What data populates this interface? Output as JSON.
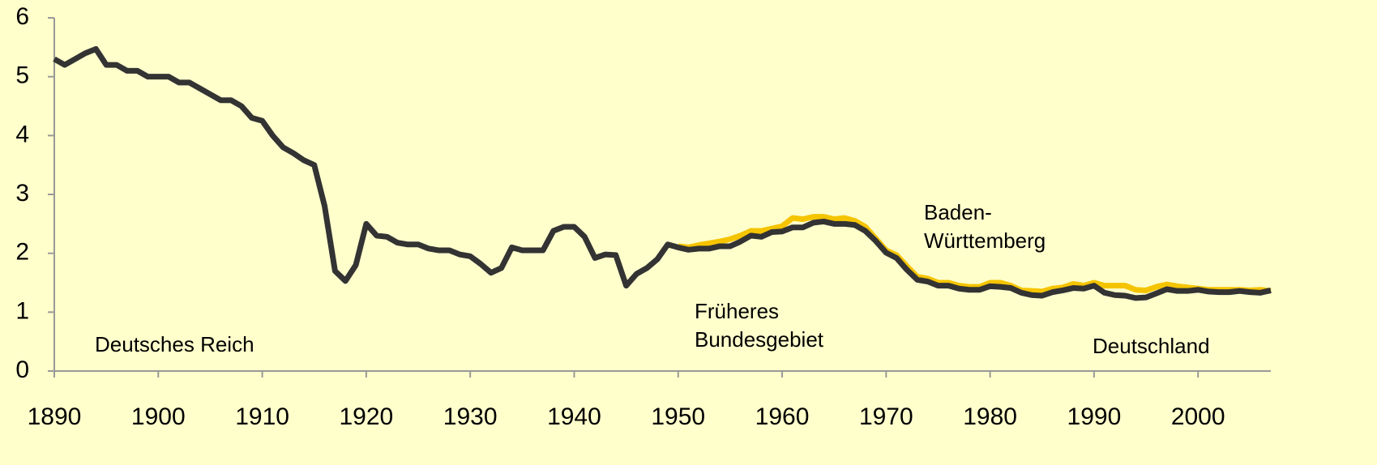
{
  "chart_data": {
    "type": "line",
    "x": [
      1890,
      1891,
      1892,
      1893,
      1894,
      1895,
      1896,
      1897,
      1898,
      1899,
      1900,
      1901,
      1902,
      1903,
      1904,
      1905,
      1906,
      1907,
      1908,
      1909,
      1910,
      1911,
      1912,
      1913,
      1914,
      1915,
      1916,
      1917,
      1918,
      1919,
      1920,
      1921,
      1922,
      1923,
      1924,
      1925,
      1926,
      1927,
      1928,
      1929,
      1930,
      1931,
      1932,
      1933,
      1934,
      1935,
      1936,
      1937,
      1938,
      1939,
      1940,
      1941,
      1942,
      1943,
      1944,
      1945,
      1946,
      1947,
      1948,
      1949,
      1950,
      1951,
      1952,
      1953,
      1954,
      1955,
      1956,
      1957,
      1958,
      1959,
      1960,
      1961,
      1962,
      1963,
      1964,
      1965,
      1966,
      1967,
      1968,
      1969,
      1970,
      1971,
      1972,
      1973,
      1974,
      1975,
      1976,
      1977,
      1978,
      1979,
      1980,
      1981,
      1982,
      1983,
      1984,
      1985,
      1986,
      1987,
      1988,
      1989,
      1990,
      1991,
      1992,
      1993,
      1994,
      1995,
      1996,
      1997,
      1998,
      1999,
      2000,
      2001,
      2002,
      2003,
      2004,
      2005,
      2006,
      2007
    ],
    "series": [
      {
        "color": "#f5c400",
        "values": [
          null,
          null,
          null,
          null,
          null,
          null,
          null,
          null,
          null,
          null,
          null,
          null,
          null,
          null,
          null,
          null,
          null,
          null,
          null,
          null,
          null,
          null,
          null,
          null,
          null,
          null,
          null,
          null,
          null,
          null,
          null,
          null,
          null,
          null,
          null,
          null,
          null,
          null,
          null,
          null,
          null,
          null,
          null,
          null,
          null,
          null,
          null,
          null,
          null,
          null,
          null,
          null,
          null,
          null,
          null,
          null,
          null,
          null,
          null,
          null,
          2.12,
          2.1,
          2.14,
          2.17,
          2.2,
          2.24,
          2.3,
          2.38,
          2.38,
          2.42,
          2.46,
          2.6,
          2.58,
          2.62,
          2.62,
          2.58,
          2.6,
          2.55,
          2.45,
          2.25,
          2.05,
          1.97,
          1.78,
          1.6,
          1.57,
          1.5,
          1.5,
          1.45,
          1.43,
          1.43,
          1.5,
          1.5,
          1.45,
          1.37,
          1.36,
          1.35,
          1.4,
          1.42,
          1.48,
          1.45,
          1.5,
          1.45,
          1.45,
          1.45,
          1.38,
          1.37,
          1.43,
          1.47,
          1.44,
          1.42,
          1.4,
          1.38,
          1.38,
          1.38,
          1.38,
          1.37,
          1.38,
          1.36
        ]
      },
      {
        "color": "#333333",
        "values": [
          5.3,
          5.2,
          5.3,
          5.4,
          5.47,
          5.2,
          5.2,
          5.1,
          5.1,
          5.0,
          5.0,
          5.0,
          4.9,
          4.9,
          4.8,
          4.7,
          4.6,
          4.6,
          4.5,
          4.3,
          4.25,
          4.0,
          3.8,
          3.7,
          3.58,
          3.5,
          2.8,
          1.7,
          1.53,
          1.8,
          2.5,
          2.3,
          2.28,
          2.18,
          2.15,
          2.15,
          2.08,
          2.05,
          2.05,
          1.98,
          1.95,
          1.82,
          1.67,
          1.75,
          2.1,
          2.05,
          2.05,
          2.05,
          2.38,
          2.45,
          2.45,
          2.28,
          1.92,
          1.98,
          1.97,
          1.45,
          1.65,
          1.75,
          1.9,
          2.15,
          2.1,
          2.06,
          2.08,
          2.08,
          2.12,
          2.12,
          2.2,
          2.3,
          2.28,
          2.36,
          2.37,
          2.44,
          2.44,
          2.52,
          2.54,
          2.5,
          2.5,
          2.48,
          2.38,
          2.21,
          2.01,
          1.92,
          1.72,
          1.55,
          1.52,
          1.45,
          1.45,
          1.4,
          1.38,
          1.38,
          1.44,
          1.43,
          1.41,
          1.33,
          1.29,
          1.28,
          1.34,
          1.37,
          1.41,
          1.4,
          1.45,
          1.33,
          1.29,
          1.28,
          1.24,
          1.25,
          1.32,
          1.39,
          1.36,
          1.36,
          1.38,
          1.35,
          1.34,
          1.34,
          1.36,
          1.34,
          1.33,
          1.37
        ]
      }
    ],
    "xlim": [
      1890,
      2007
    ],
    "xticks": [
      1890,
      1900,
      1910,
      1920,
      1930,
      1940,
      1950,
      1960,
      1970,
      1980,
      1990,
      2000
    ],
    "ylim": [
      0,
      6
    ],
    "yticks": [
      0,
      1,
      2,
      3,
      4,
      5,
      6
    ],
    "annotations": [
      {
        "lines": [
          "Deutsches Reich"
        ]
      },
      {
        "lines": [
          "Früheres",
          "Bundesgebiet"
        ]
      },
      {
        "lines": [
          "Baden-",
          "Württemberg"
        ]
      },
      {
        "lines": [
          "Deutschland"
        ]
      }
    ]
  }
}
